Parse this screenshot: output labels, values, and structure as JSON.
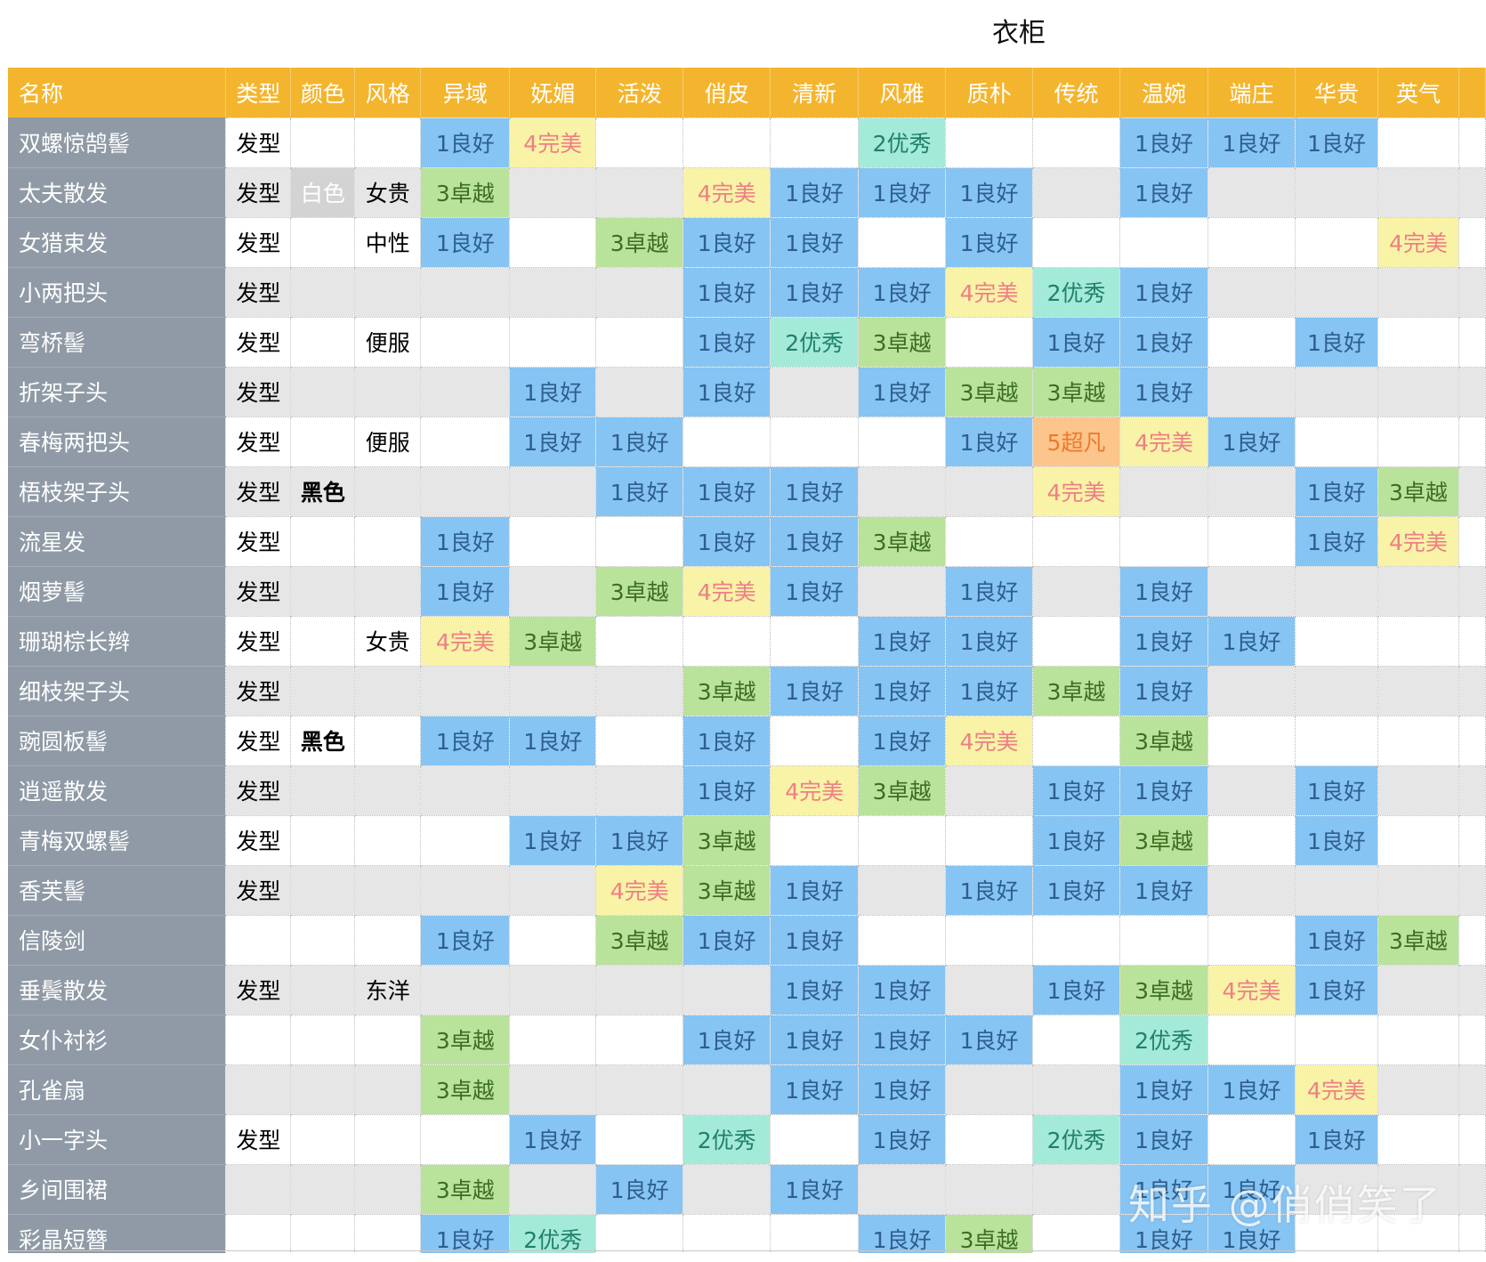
{
  "title": "衣柜",
  "watermark": "知乎 @俏俏笑了",
  "headers": [
    "名称",
    "类型",
    "颜色",
    "风格",
    "异域",
    "妩媚",
    "活泼",
    "俏皮",
    "清新",
    "风雅",
    "质朴",
    "传统",
    "温婉",
    "端庄",
    "华贵",
    "英气"
  ],
  "rows": [
    [
      "双螺惊鹄髻",
      "发型",
      "",
      "",
      "1良好",
      "4完美",
      "",
      "",
      "",
      "2优秀",
      "",
      "",
      "1良好",
      "1良好",
      "1良好",
      ""
    ],
    [
      "太夫散发",
      "发型",
      "白色",
      "女贵",
      "3卓越",
      "",
      "",
      "4完美",
      "1良好",
      "1良好",
      "1良好",
      "",
      "1良好",
      "",
      "",
      ""
    ],
    [
      "女猎束发",
      "发型",
      "",
      "中性",
      "1良好",
      "",
      "3卓越",
      "1良好",
      "1良好",
      "",
      "1良好",
      "",
      "",
      "",
      "",
      "4完美"
    ],
    [
      "小两把头",
      "发型",
      "",
      "",
      "",
      "",
      "",
      "1良好",
      "1良好",
      "1良好",
      "4完美",
      "2优秀",
      "1良好",
      "",
      "",
      ""
    ],
    [
      "弯桥髻",
      "发型",
      "",
      "便服",
      "",
      "",
      "",
      "1良好",
      "2优秀",
      "3卓越",
      "",
      "1良好",
      "1良好",
      "",
      "1良好",
      ""
    ],
    [
      "折架子头",
      "发型",
      "",
      "",
      "",
      "1良好",
      "",
      "1良好",
      "",
      "1良好",
      "3卓越",
      "3卓越",
      "1良好",
      "",
      "",
      ""
    ],
    [
      "春梅两把头",
      "发型",
      "",
      "便服",
      "",
      "1良好",
      "1良好",
      "",
      "",
      "",
      "1良好",
      "5超凡",
      "4完美",
      "1良好",
      "",
      ""
    ],
    [
      "梧枝架子头",
      "发型",
      "黑色",
      "",
      "",
      "",
      "1良好",
      "1良好",
      "1良好",
      "",
      "",
      "4完美",
      "",
      "",
      "1良好",
      "3卓越"
    ],
    [
      "流星发",
      "发型",
      "",
      "",
      "1良好",
      "",
      "",
      "1良好",
      "1良好",
      "3卓越",
      "",
      "",
      "",
      "",
      "1良好",
      "4完美"
    ],
    [
      "烟萝髻",
      "发型",
      "",
      "",
      "1良好",
      "",
      "3卓越",
      "4完美",
      "1良好",
      "",
      "1良好",
      "",
      "1良好",
      "",
      "",
      ""
    ],
    [
      "珊瑚棕长辫",
      "发型",
      "",
      "女贵",
      "4完美",
      "3卓越",
      "",
      "",
      "",
      "1良好",
      "1良好",
      "",
      "1良好",
      "1良好",
      "",
      ""
    ],
    [
      "细枝架子头",
      "发型",
      "",
      "",
      "",
      "",
      "",
      "3卓越",
      "1良好",
      "1良好",
      "1良好",
      "3卓越",
      "1良好",
      "",
      "",
      ""
    ],
    [
      "豌圆板髻",
      "发型",
      "黑色",
      "",
      "1良好",
      "1良好",
      "",
      "1良好",
      "",
      "1良好",
      "4完美",
      "",
      "3卓越",
      "",
      "",
      ""
    ],
    [
      "逍遥散发",
      "发型",
      "",
      "",
      "",
      "",
      "",
      "1良好",
      "4完美",
      "3卓越",
      "",
      "1良好",
      "1良好",
      "",
      "1良好",
      ""
    ],
    [
      "青梅双螺髻",
      "发型",
      "",
      "",
      "",
      "1良好",
      "1良好",
      "3卓越",
      "",
      "",
      "",
      "1良好",
      "3卓越",
      "",
      "1良好",
      ""
    ],
    [
      "香芙髻",
      "发型",
      "",
      "",
      "",
      "",
      "4完美",
      "3卓越",
      "1良好",
      "",
      "1良好",
      "1良好",
      "1良好",
      "",
      "",
      ""
    ],
    [
      "信陵剑",
      "",
      "",
      "",
      "1良好",
      "",
      "3卓越",
      "1良好",
      "1良好",
      "",
      "",
      "",
      "",
      "",
      "1良好",
      "3卓越"
    ],
    [
      "垂鬓散发",
      "发型",
      "",
      "东洋",
      "",
      "",
      "",
      "",
      "1良好",
      "1良好",
      "",
      "1良好",
      "3卓越",
      "4完美",
      "1良好",
      ""
    ],
    [
      "女仆衬衫",
      "",
      "",
      "",
      "3卓越",
      "",
      "",
      "1良好",
      "1良好",
      "1良好",
      "1良好",
      "",
      "2优秀",
      "",
      "",
      ""
    ],
    [
      "孔雀扇",
      "",
      "",
      "",
      "3卓越",
      "",
      "",
      "",
      "1良好",
      "1良好",
      "",
      "",
      "1良好",
      "1良好",
      "4完美",
      ""
    ],
    [
      "小一字头",
      "发型",
      "",
      "",
      "",
      "1良好",
      "",
      "2优秀",
      "",
      "1良好",
      "",
      "2优秀",
      "1良好",
      "",
      "1良好",
      ""
    ],
    [
      "乡间围裙",
      "",
      "",
      "",
      "3卓越",
      "",
      "1良好",
      "",
      "1良好",
      "",
      "",
      "",
      "1良好",
      "1良好",
      "",
      ""
    ],
    [
      "彩晶短簪",
      "",
      "",
      "",
      "1良好",
      "2优秀",
      "",
      "",
      "",
      "1良好",
      "3卓越",
      "",
      "1良好",
      "1良好",
      "",
      ""
    ]
  ]
}
